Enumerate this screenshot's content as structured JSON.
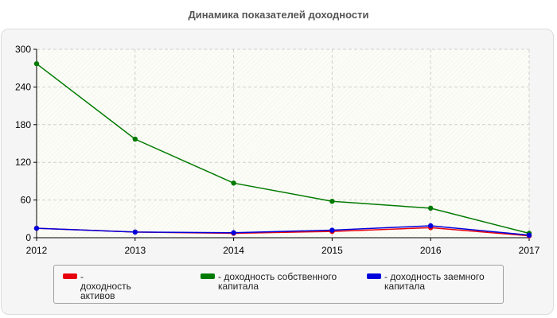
{
  "title": "Динамика показателей доходности",
  "chart_data": {
    "type": "line",
    "title": "Динамика показателей доходности",
    "x": [
      "2012",
      "2013",
      "2014",
      "2015",
      "2016",
      "2017"
    ],
    "ylim": [
      0,
      300
    ],
    "yticks": [
      0,
      60,
      120,
      180,
      240,
      300
    ],
    "grid": true,
    "legend_position": "bottom",
    "series": [
      {
        "name": "- доходность активов",
        "color": "#e8000b",
        "values": [
          15,
          9,
          7,
          10,
          16,
          3
        ]
      },
      {
        "name": "- доходность собственного капитала",
        "color": "#007a00",
        "values": [
          277,
          157,
          87,
          58,
          47,
          7
        ]
      },
      {
        "name": "- доходность заемного капитала",
        "color": "#0000dd",
        "values": [
          15,
          9,
          8,
          12,
          19,
          4
        ]
      }
    ]
  }
}
